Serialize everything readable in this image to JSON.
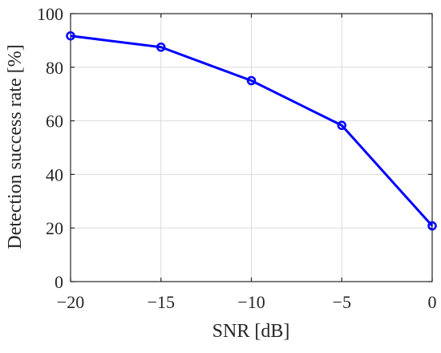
{
  "chart_data": {
    "type": "line",
    "title": "",
    "xlabel": "SNR [dB]",
    "ylabel": "Detection success rate [%]",
    "x": [
      -20,
      -15,
      -10,
      -5,
      0
    ],
    "series": [
      {
        "values": [
          91.7,
          87.5,
          75.0,
          58.3,
          20.8
        ]
      }
    ],
    "xlim": [
      -20,
      0
    ],
    "ylim": [
      0,
      100
    ],
    "xticks": [
      -20,
      -15,
      -10,
      -5,
      0
    ],
    "xtick_labels": [
      "−20",
      "−15",
      "−10",
      "−5",
      "0"
    ],
    "yticks": [
      0,
      20,
      40,
      60,
      80,
      100
    ],
    "ytick_labels": [
      "0",
      "20",
      "40",
      "60",
      "80",
      "100"
    ],
    "grid": true,
    "marker": "circle",
    "line_color": "#0000ff"
  }
}
